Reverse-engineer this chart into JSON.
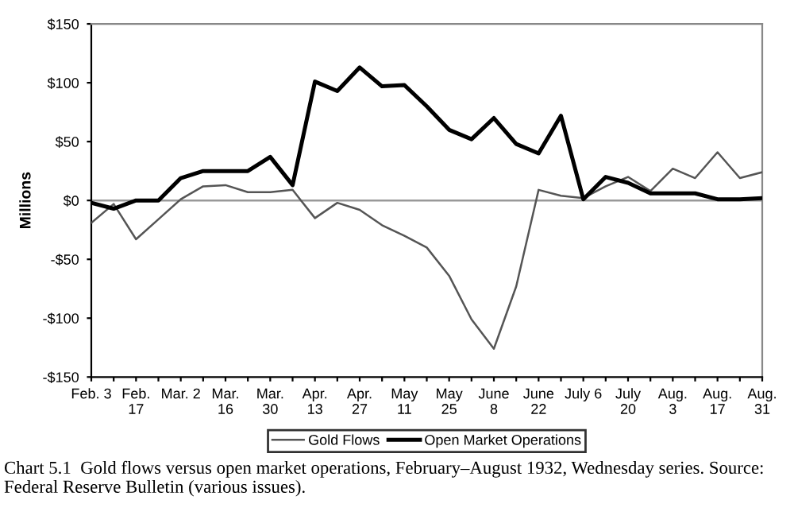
{
  "chart_data": {
    "type": "line",
    "categories": [
      "Feb. 3",
      null,
      "Feb.\n17",
      null,
      "Mar. 2",
      null,
      "Mar.\n16",
      null,
      "Mar.\n30",
      null,
      "Apr.\n13",
      null,
      "Apr.\n27",
      null,
      "May\n11",
      null,
      "May\n25",
      null,
      "June\n8",
      null,
      "June\n22",
      null,
      "July 6",
      null,
      "July\n20",
      null,
      "Aug.\n3",
      null,
      "Aug.\n17",
      null,
      "Aug.\n31"
    ],
    "series": [
      {
        "name": "Gold Flows",
        "color": "#555555",
        "values": [
          -19,
          -3,
          -33,
          -16,
          1,
          12,
          13,
          7,
          7,
          9,
          -15,
          -2,
          -8,
          -21,
          -30,
          -40,
          -64,
          -101,
          -126,
          -73,
          9,
          4,
          2,
          12,
          20,
          8,
          27,
          19,
          41,
          19,
          24
        ]
      },
      {
        "name": "Open Market Operations",
        "color": "#000000",
        "values": [
          -2,
          -7,
          0,
          0,
          19,
          25,
          25,
          25,
          37,
          13,
          101,
          93,
          113,
          97,
          98,
          80,
          60,
          52,
          70,
          48,
          40,
          72,
          1,
          20,
          15,
          6,
          6,
          6,
          1,
          1,
          2
        ]
      }
    ],
    "ylabel": "Millions",
    "ylim": [
      -150,
      150
    ],
    "yticks": [
      {
        "value": -150,
        "label": "-$150"
      },
      {
        "value": -100,
        "label": "-$100"
      },
      {
        "value": -50,
        "label": "-$50"
      },
      {
        "value": 0,
        "label": "$0"
      },
      {
        "value": 50,
        "label": "$50"
      },
      {
        "value": 100,
        "label": "$100"
      },
      {
        "value": 150,
        "label": "$150"
      }
    ],
    "ref_lines": [
      {
        "axis": "y",
        "value": 0,
        "color": "#999999"
      }
    ],
    "legend": "bottom",
    "grid": false,
    "marker": "none",
    "annotations": [
      "Chart 5.1  Gold flows versus open market operations, February–August 1932, Wednesday series. Source: Federal Reserve Bulletin (various issues)."
    ]
  }
}
